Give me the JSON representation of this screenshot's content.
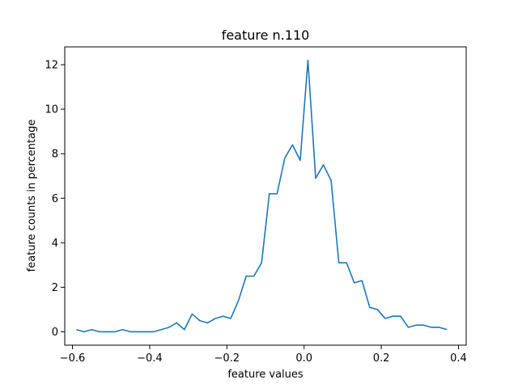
{
  "chart_data": {
    "type": "line",
    "title": "feature n.110",
    "xlabel": "feature values",
    "ylabel": "feature counts in percentage",
    "xlim": [
      -0.62,
      0.42
    ],
    "ylim": [
      -0.6,
      12.8
    ],
    "x_ticks": [
      -0.6,
      -0.4,
      -0.2,
      0.0,
      0.2,
      0.4
    ],
    "x_tick_labels": [
      "−0.6",
      "−0.4",
      "−0.2",
      "0.0",
      "0.2",
      "0.4"
    ],
    "y_ticks": [
      0,
      2,
      4,
      6,
      8,
      10,
      12
    ],
    "y_tick_labels": [
      "0",
      "2",
      "4",
      "6",
      "8",
      "10",
      "12"
    ],
    "grid": false,
    "line_color": "#1f77b4",
    "series": [
      {
        "x": [
          -0.59,
          -0.57,
          -0.55,
          -0.53,
          -0.51,
          -0.49,
          -0.47,
          -0.45,
          -0.43,
          -0.41,
          -0.39,
          -0.37,
          -0.35,
          -0.33,
          -0.31,
          -0.29,
          -0.27,
          -0.25,
          -0.23,
          -0.21,
          -0.19,
          -0.17,
          -0.15,
          -0.13,
          -0.11,
          -0.09,
          -0.07,
          -0.05,
          -0.03,
          -0.01,
          0.01,
          0.03,
          0.05,
          0.07,
          0.09,
          0.11,
          0.13,
          0.15,
          0.17,
          0.19,
          0.21,
          0.23,
          0.25,
          0.27,
          0.29,
          0.31,
          0.33,
          0.35,
          0.37
        ],
        "values": [
          0.1,
          0.0,
          0.1,
          0.0,
          0.0,
          0.0,
          0.1,
          0.0,
          0.0,
          0.0,
          0.0,
          0.1,
          0.2,
          0.4,
          0.1,
          0.8,
          0.5,
          0.4,
          0.6,
          0.7,
          0.6,
          1.4,
          2.5,
          2.5,
          3.1,
          6.2,
          6.2,
          7.8,
          8.4,
          7.7,
          12.2,
          6.9,
          7.5,
          6.8,
          3.1,
          3.1,
          2.2,
          2.3,
          1.1,
          1.0,
          0.6,
          0.7,
          0.7,
          0.2,
          0.3,
          0.3,
          0.2,
          0.2,
          0.1
        ]
      }
    ]
  }
}
